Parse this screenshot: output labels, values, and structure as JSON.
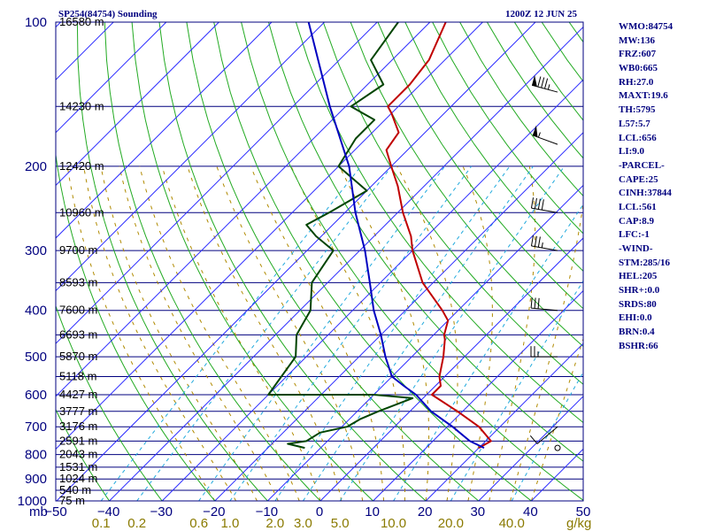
{
  "header": {
    "station": "SP254(84754) Sounding",
    "time": "1200Z 12 JUN 25"
  },
  "indices": [
    "WMO:84754",
    "MW:136",
    "FRZ:607",
    "WB0:665",
    "RH:27.0",
    "MAXT:19.6",
    "TH:5795",
    "L57:5.7",
    "LCL:656",
    "LI:9.0",
    "-PARCEL-",
    "CAPE:25",
    "CINH:37844",
    "LCL:561",
    "CAP:8.9",
    "LFC:-1",
    "-WIND-",
    "STM:285/16",
    "HEL:205",
    "SHR+:0.0",
    "SRDS:80",
    "EHI:0.0",
    "BRN:0.4",
    "BSHR:66"
  ],
  "colors": {
    "isobar": "#00007f",
    "isotherm": "#2b2bff",
    "dry_adiabat": "#22aa22",
    "moist_adiabat": "#b08a00",
    "mixing_ratio": "#22aadd",
    "temperature": "#c00000",
    "dewpoint": "#004400",
    "parcel": "#0000c0"
  },
  "chart_data": {
    "type": "line",
    "subtype": "skew-T log-P sounding",
    "y_scale": "log",
    "ylim": [
      1000,
      100
    ],
    "xlim": [
      -50,
      50
    ],
    "pressure_labels": [
      100,
      200,
      300,
      400,
      500,
      600,
      700,
      800,
      900,
      1000
    ],
    "pressure_label_unit": "mb",
    "height_levels": [
      {
        "p": 100,
        "label": "16580 m"
      },
      {
        "p": 150,
        "label": "14230 m"
      },
      {
        "p": 200,
        "label": "12420 m"
      },
      {
        "p": 250,
        "label": "10960 m"
      },
      {
        "p": 300,
        "label": "9700 m"
      },
      {
        "p": 350,
        "label": "8593 m"
      },
      {
        "p": 400,
        "label": "7600 m"
      },
      {
        "p": 450,
        "label": "6693 m"
      },
      {
        "p": 500,
        "label": "5870 m"
      },
      {
        "p": 550,
        "label": "5118 m"
      },
      {
        "p": 600,
        "label": "4427 m"
      },
      {
        "p": 650,
        "label": "3777 m"
      },
      {
        "p": 700,
        "label": "3176 m"
      },
      {
        "p": 750,
        "label": "2591 m"
      },
      {
        "p": 800,
        "label": "2043 m"
      },
      {
        "p": 850,
        "label": "1531 m"
      },
      {
        "p": 900,
        "label": "1024 m"
      },
      {
        "p": 950,
        "label": "540 m"
      },
      {
        "p": 1000,
        "label": "75 m"
      }
    ],
    "temperature_ticks": [
      "−50",
      "−40",
      "−30",
      "−20",
      "−10",
      "0",
      "10",
      "20",
      "30",
      "40",
      "50"
    ],
    "mixing_ratio_ticks": [
      {
        "w": 0.1,
        "label": "0.1"
      },
      {
        "w": 0.2,
        "label": "0.2"
      },
      {
        "w": 0.6,
        "label": "0.6"
      },
      {
        "w": 1.0,
        "label": "1.0"
      },
      {
        "w": 2.0,
        "label": "2.0"
      },
      {
        "w": 3.0,
        "label": "3.0"
      },
      {
        "w": 5.0,
        "label": "5.0"
      },
      {
        "w": 10.0,
        "label": "10.0"
      },
      {
        "w": 20.0,
        "label": "20.0"
      },
      {
        "w": 40.0,
        "label": "40.0"
      }
    ],
    "mixing_ratio_unit": "g/kg",
    "series": [
      {
        "key": "temperature",
        "points": [
          [
            775,
            20
          ],
          [
            750,
            21
          ],
          [
            700,
            16
          ],
          [
            650,
            9
          ],
          [
            600,
            1
          ],
          [
            575,
            1
          ],
          [
            550,
            -1
          ],
          [
            500,
            -4
          ],
          [
            460,
            -7
          ],
          [
            450,
            -8
          ],
          [
            420,
            -10
          ],
          [
            400,
            -13
          ],
          [
            350,
            -22
          ],
          [
            300,
            -30
          ],
          [
            280,
            -33
          ],
          [
            250,
            -39
          ],
          [
            220,
            -45
          ],
          [
            200,
            -50
          ],
          [
            185,
            -54
          ],
          [
            170,
            -55
          ],
          [
            155,
            -60
          ],
          [
            150,
            -62
          ],
          [
            135,
            -62
          ],
          [
            120,
            -63
          ],
          [
            100,
            -67
          ]
        ]
      },
      {
        "key": "dewpoint",
        "points": [
          [
            775,
            -13
          ],
          [
            760,
            -17
          ],
          [
            750,
            -14
          ],
          [
            720,
            -13
          ],
          [
            700,
            -9
          ],
          [
            675,
            -8
          ],
          [
            650,
            -6
          ],
          [
            610,
            -2
          ],
          [
            600,
            -10
          ],
          [
            600,
            -30
          ],
          [
            500,
            -32
          ],
          [
            450,
            -36
          ],
          [
            400,
            -38
          ],
          [
            350,
            -43
          ],
          [
            300,
            -45
          ],
          [
            280,
            -51
          ],
          [
            265,
            -55
          ],
          [
            250,
            -53
          ],
          [
            225,
            -50
          ],
          [
            200,
            -60
          ],
          [
            175,
            -62
          ],
          [
            160,
            -62
          ],
          [
            150,
            -69
          ],
          [
            135,
            -67
          ],
          [
            120,
            -74
          ],
          [
            100,
            -76
          ]
        ]
      },
      {
        "key": "parcel",
        "points": [
          [
            775,
            21
          ],
          [
            750,
            17
          ],
          [
            700,
            11
          ],
          [
            650,
            4
          ],
          [
            600,
            -2
          ],
          [
            575,
            -6
          ],
          [
            550,
            -10
          ],
          [
            500,
            -15
          ],
          [
            450,
            -20
          ],
          [
            400,
            -26
          ],
          [
            350,
            -32
          ],
          [
            300,
            -39
          ],
          [
            250,
            -48
          ],
          [
            200,
            -58
          ],
          [
            150,
            -73
          ],
          [
            100,
            -93
          ]
        ]
      }
    ],
    "wind_barbs": [
      {
        "p": 140,
        "dir": 285,
        "spd": 85
      },
      {
        "p": 180,
        "dir": 290,
        "spd": 55
      },
      {
        "p": 250,
        "dir": 280,
        "spd": 40
      },
      {
        "p": 300,
        "dir": 280,
        "spd": 35
      },
      {
        "p": 400,
        "dir": 275,
        "spd": 30
      },
      {
        "p": 500,
        "dir": 270,
        "spd": 25
      },
      {
        "p": 700,
        "dir": 230,
        "spd": 10
      },
      {
        "p": 775,
        "dir": 0,
        "spd": 0
      }
    ]
  }
}
